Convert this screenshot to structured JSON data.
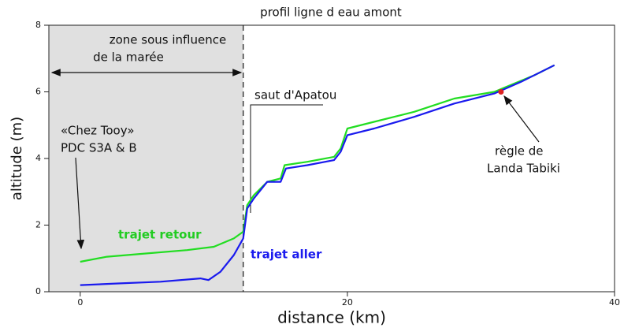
{
  "chart_data": {
    "type": "line",
    "title": "profil ligne d eau amont",
    "x_label": "distance (km)",
    "y_label": "altitude (m)",
    "xlim": [
      -2.35,
      40
    ],
    "ylim": [
      0,
      8
    ],
    "xticks": [
      0,
      20,
      40
    ],
    "yticks": [
      0,
      2,
      4,
      6,
      8
    ],
    "series": [
      {
        "name": "trajet retour",
        "color": "#22dd22",
        "x": [
          0,
          2,
          5,
          8,
          10,
          11.5,
          12.2,
          12.5,
          13,
          14,
          15,
          15.3,
          17,
          19,
          19.5,
          20,
          22,
          25,
          28,
          31,
          34,
          35.5
        ],
        "values": [
          0.9,
          1.05,
          1.15,
          1.25,
          1.35,
          1.6,
          1.8,
          2.6,
          2.9,
          3.3,
          3.4,
          3.8,
          3.9,
          4.05,
          4.3,
          4.9,
          5.1,
          5.4,
          5.8,
          6.0,
          6.5,
          6.8
        ]
      },
      {
        "name": "trajet aller",
        "color": "#1a1aee",
        "x": [
          0,
          3,
          6,
          9,
          9.6,
          10.5,
          11.5,
          12.2,
          12.5,
          13,
          14,
          15,
          15.4,
          17,
          19,
          19.5,
          20,
          22,
          25,
          28,
          31,
          33,
          35.5
        ],
        "values": [
          0.2,
          0.25,
          0.3,
          0.4,
          0.35,
          0.6,
          1.1,
          1.6,
          2.5,
          2.8,
          3.3,
          3.3,
          3.7,
          3.8,
          3.95,
          4.2,
          4.7,
          4.9,
          5.25,
          5.65,
          5.95,
          6.3,
          6.8
        ]
      }
    ],
    "zone": {
      "label": [
        "zone sous influence",
        "de la marée"
      ],
      "x_end": 12.2
    },
    "annotations": {
      "apatou": "saut d'Apatou",
      "tooy": [
        "«Chez Tooy»",
        "PDC S3A & B"
      ],
      "landa": [
        "règle de",
        "Landa Tabiki"
      ]
    },
    "marker": {
      "x": 31.5,
      "y": 6.0,
      "color": "#dd2222"
    }
  }
}
